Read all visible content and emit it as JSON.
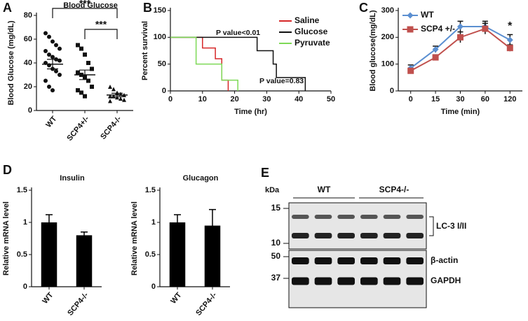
{
  "chart_data": [
    {
      "type": "dot",
      "panel": "A",
      "title": "Blood Glucose",
      "ylabel": "Blood Glucose (mg/dL)",
      "categories": [
        "WT",
        "SCP4+/-",
        "SCP4-/-"
      ],
      "points": [
        [
          65,
          62,
          58,
          55,
          52,
          50,
          47,
          45,
          43,
          42,
          40,
          38,
          35,
          33,
          30,
          25,
          20,
          17
        ],
        [
          55,
          52,
          47,
          40,
          35,
          32,
          30,
          28,
          25,
          20,
          17,
          15,
          12
        ],
        [
          20,
          18,
          15,
          14,
          13,
          12,
          12,
          11,
          10,
          9,
          8
        ]
      ],
      "markers": [
        "circle",
        "square",
        "triangle"
      ],
      "means": [
        39,
        30,
        13
      ],
      "errors": [
        4,
        4,
        1.5
      ],
      "color": "#111111",
      "annotations": [
        "***",
        "***"
      ],
      "ylim": [
        0,
        80
      ],
      "yticks": [
        0,
        20,
        40,
        60,
        80
      ]
    },
    {
      "type": "survival",
      "panel": "B",
      "xlabel": "Time (hr)",
      "ylabel": "Percent survival",
      "series": [
        {
          "name": "Saline",
          "color": "#d62728",
          "x": [
            0,
            10,
            10,
            14,
            14,
            16,
            16,
            18,
            18
          ],
          "values": [
            100,
            100,
            80,
            80,
            60,
            60,
            20,
            20,
            0
          ]
        },
        {
          "name": "Glucose",
          "color": "#111111",
          "x": [
            0,
            27,
            27,
            32,
            32,
            33,
            33,
            42,
            42
          ],
          "values": [
            100,
            100,
            75,
            75,
            50,
            50,
            25,
            25,
            0
          ]
        },
        {
          "name": "Pyruvate",
          "color": "#7ed957",
          "x": [
            0,
            8,
            8,
            16,
            16,
            21,
            21
          ],
          "values": [
            100,
            100,
            50,
            50,
            20,
            20,
            0
          ]
        }
      ],
      "annotations": [
        "P value<0.01",
        "P value=0.83"
      ],
      "xlim": [
        0,
        50
      ],
      "xticks": [
        0,
        10,
        20,
        30,
        40,
        50
      ],
      "ylim": [
        0,
        150
      ],
      "yticks": [
        0,
        50,
        100,
        150
      ]
    },
    {
      "type": "line_error",
      "panel": "C",
      "xlabel": "Time (min)",
      "ylabel": "Blood glucose(mg/dL)",
      "categories": [
        "0",
        "15",
        "30",
        "60",
        "120"
      ],
      "series": [
        {
          "name": "WT",
          "color": "#5b8fd1",
          "marker": "diamond",
          "values": [
            85,
            155,
            240,
            240,
            190
          ],
          "errors": [
            12,
            12,
            20,
            20,
            20
          ]
        },
        {
          "name": "SCP4 +/-",
          "color": "#c0504d",
          "marker": "square",
          "values": [
            75,
            125,
            200,
            232,
            160
          ],
          "errors": [
            8,
            10,
            20,
            20,
            12
          ]
        }
      ],
      "annotations": [
        "*"
      ],
      "ylim": [
        0,
        300
      ],
      "yticks": [
        0,
        100,
        200,
        300
      ]
    },
    {
      "type": "bar_error",
      "panel": "D",
      "title": "Insulin",
      "ylabel": "Relative mRNA level",
      "categories": [
        "WT",
        "SCP4-/-"
      ],
      "values": [
        1.0,
        0.8
      ],
      "errors": [
        0.12,
        0.05
      ],
      "color": "#000000",
      "ylim": [
        0,
        1.5
      ],
      "yticks": [
        0,
        0.5,
        1,
        1.5
      ]
    },
    {
      "type": "bar_error",
      "title": "Glucagon",
      "ylabel": "Relative mRNA level",
      "categories": [
        "WT",
        "SCP4-/-"
      ],
      "values": [
        1.0,
        0.95
      ],
      "errors": [
        0.12,
        0.25
      ],
      "color": "#000000",
      "ylim": [
        0,
        1.5
      ],
      "yticks": [
        0,
        0.5,
        1,
        1.5
      ]
    }
  ],
  "blot": {
    "panel": "E",
    "unit": "kDa",
    "groups": [
      "WT",
      "SCP4-/-"
    ],
    "markers": [
      "15",
      "10",
      "50",
      "37"
    ],
    "bands": [
      "LC-3 I/II",
      "β-actin",
      "GAPDH"
    ]
  }
}
